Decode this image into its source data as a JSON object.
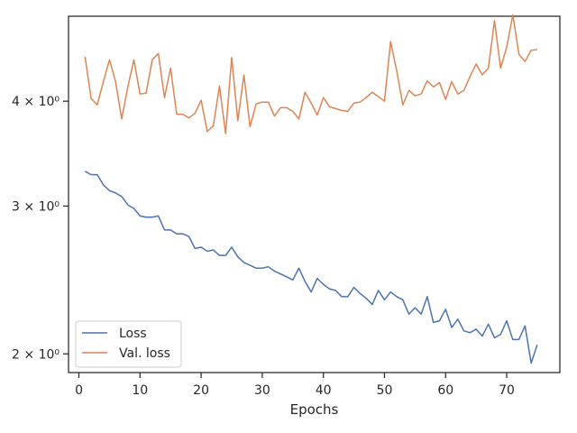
{
  "chart_data": {
    "type": "line",
    "title": "",
    "xlabel": "Epochs",
    "ylabel": "",
    "yscale": "log",
    "xlim": [
      -1.7,
      78.7
    ],
    "ylim": [
      1.9,
      5.05
    ],
    "xticks": [
      0,
      10,
      20,
      30,
      40,
      50,
      60,
      70
    ],
    "xtick_labels": [
      "0",
      "10",
      "20",
      "30",
      "40",
      "50",
      "60",
      "70"
    ],
    "yticks": [
      2,
      3,
      4
    ],
    "ytick_labels": [
      "2 × 10⁰",
      "3 × 10⁰",
      "4 × 10⁰"
    ],
    "grid": false,
    "legend_position": "lower-left",
    "x": [
      1,
      2,
      3,
      4,
      5,
      6,
      7,
      8,
      9,
      10,
      11,
      12,
      13,
      14,
      15,
      16,
      17,
      18,
      19,
      20,
      21,
      22,
      23,
      24,
      25,
      26,
      27,
      28,
      29,
      30,
      31,
      32,
      33,
      34,
      35,
      36,
      37,
      38,
      39,
      40,
      41,
      42,
      43,
      44,
      45,
      46,
      47,
      48,
      49,
      50,
      51,
      52,
      53,
      54,
      55,
      56,
      57,
      58,
      59,
      60,
      61,
      62,
      63,
      64,
      65,
      66,
      67,
      68,
      69,
      70,
      71,
      72,
      73,
      74,
      75
    ],
    "series": [
      {
        "name": "Loss",
        "color": "#4c72b0",
        "values": [
          3.3,
          3.27,
          3.27,
          3.18,
          3.13,
          3.11,
          3.08,
          3.01,
          2.98,
          2.92,
          2.91,
          2.91,
          2.92,
          2.81,
          2.81,
          2.78,
          2.78,
          2.76,
          2.67,
          2.68,
          2.65,
          2.66,
          2.62,
          2.62,
          2.68,
          2.61,
          2.57,
          2.55,
          2.53,
          2.53,
          2.54,
          2.51,
          2.49,
          2.47,
          2.45,
          2.53,
          2.44,
          2.37,
          2.46,
          2.42,
          2.39,
          2.38,
          2.34,
          2.34,
          2.4,
          2.36,
          2.33,
          2.29,
          2.38,
          2.32,
          2.37,
          2.34,
          2.32,
          2.23,
          2.27,
          2.23,
          2.34,
          2.18,
          2.19,
          2.26,
          2.15,
          2.2,
          2.13,
          2.12,
          2.14,
          2.1,
          2.17,
          2.09,
          2.11,
          2.19,
          2.08,
          2.08,
          2.16,
          1.95,
          2.05
        ]
      },
      {
        "name": "Val. loss",
        "color": "#dd8452",
        "values": [
          4.52,
          4.03,
          3.96,
          4.22,
          4.48,
          4.22,
          3.81,
          4.16,
          4.48,
          4.08,
          4.09,
          4.48,
          4.56,
          4.04,
          4.38,
          3.86,
          3.86,
          3.82,
          3.87,
          4.01,
          3.68,
          3.74,
          4.17,
          3.66,
          4.51,
          3.79,
          4.3,
          3.73,
          3.97,
          3.99,
          3.99,
          3.84,
          3.93,
          3.93,
          3.89,
          3.81,
          4.1,
          3.98,
          3.85,
          4.04,
          3.94,
          3.92,
          3.9,
          3.89,
          3.98,
          3.99,
          4.04,
          4.1,
          4.05,
          4.0,
          4.71,
          4.35,
          3.96,
          4.12,
          4.06,
          4.08,
          4.23,
          4.16,
          4.21,
          4.02,
          4.22,
          4.08,
          4.12,
          4.28,
          4.43,
          4.3,
          4.38,
          4.99,
          4.38,
          4.64,
          5.07,
          4.55,
          4.46,
          4.6,
          4.61
        ]
      }
    ]
  }
}
